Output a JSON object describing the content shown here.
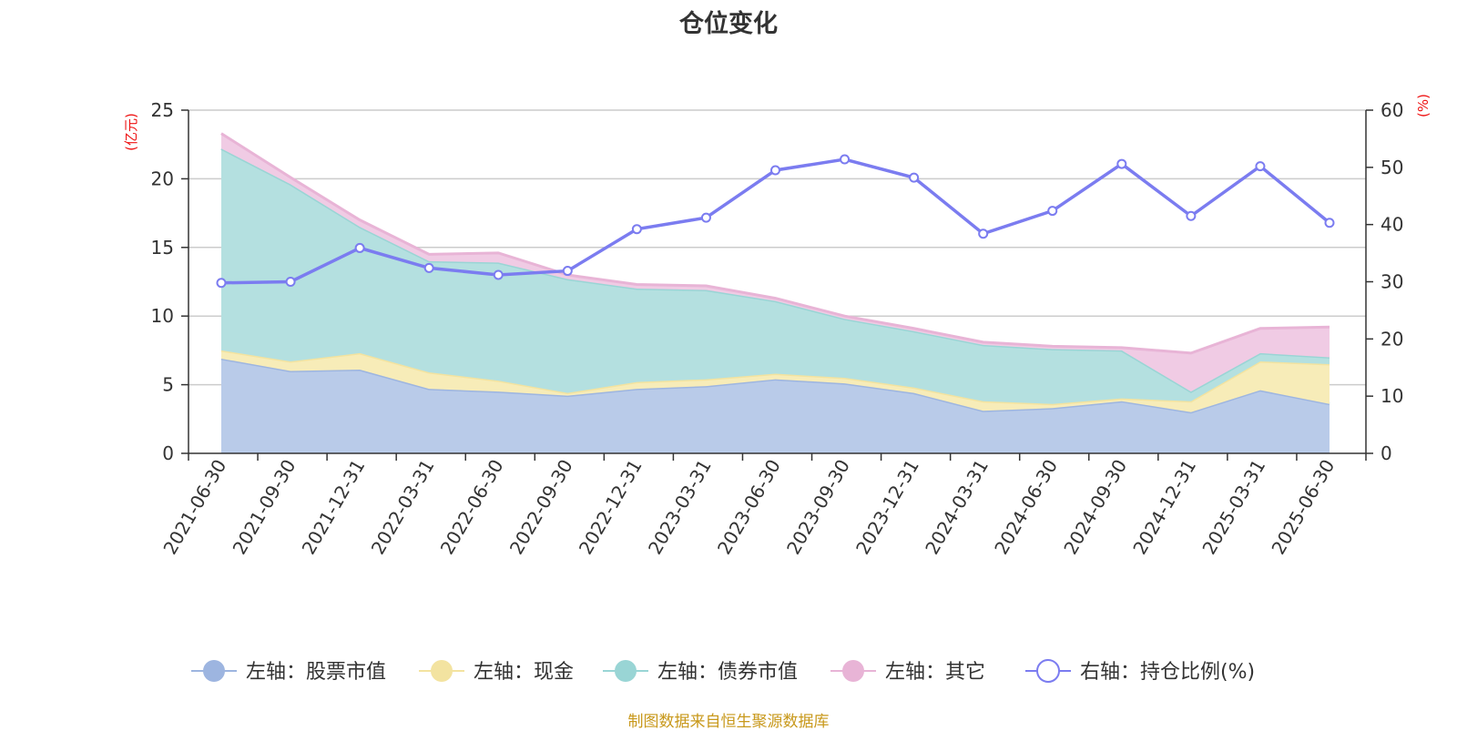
{
  "title": "仓位变化",
  "source_note": "制图数据来自恒生聚源数据库",
  "chart_data": {
    "type": "area",
    "categories": [
      "2021-06-30",
      "2021-09-30",
      "2021-12-31",
      "2022-03-31",
      "2022-06-30",
      "2022-09-30",
      "2022-12-31",
      "2023-03-31",
      "2023-06-30",
      "2023-09-30",
      "2023-12-31",
      "2024-03-31",
      "2024-06-30",
      "2024-09-30",
      "2024-12-31",
      "2025-03-31",
      "2025-06-30"
    ],
    "left_axis": {
      "unit": "(亿元)",
      "ylim": [
        0,
        25
      ],
      "ticks": [
        0,
        5,
        10,
        15,
        20,
        25
      ]
    },
    "right_axis": {
      "unit": "(%)",
      "ylim": [
        0,
        60
      ],
      "ticks": [
        0,
        10,
        20,
        30,
        40,
        50,
        60
      ]
    },
    "stacked": true,
    "grid": true,
    "legend_position": "bottom",
    "series": [
      {
        "name": "左轴：股票市值",
        "axis": "left",
        "color": "#9db5e0",
        "fill": "#b9cbe9",
        "values": [
          6.9,
          6.0,
          6.1,
          4.7,
          4.5,
          4.2,
          4.7,
          4.9,
          5.4,
          5.1,
          4.4,
          3.1,
          3.3,
          3.8,
          3.0,
          4.6,
          3.6
        ]
      },
      {
        "name": "左轴：现金",
        "axis": "left",
        "color": "#f3e3a0",
        "fill": "#f7ecb8",
        "values": [
          0.6,
          0.7,
          1.2,
          1.2,
          0.8,
          0.2,
          0.5,
          0.5,
          0.4,
          0.4,
          0.4,
          0.7,
          0.3,
          0.2,
          0.8,
          2.1,
          2.9
        ]
      },
      {
        "name": "左轴：债券市值",
        "axis": "left",
        "color": "#99d5d5",
        "fill": "#b4e0e0",
        "values": [
          14.7,
          12.9,
          9.2,
          8.1,
          8.6,
          8.3,
          6.8,
          6.5,
          5.3,
          4.3,
          4.1,
          4.1,
          4.0,
          3.5,
          0.7,
          0.6,
          0.5
        ]
      },
      {
        "name": "左轴：其它",
        "axis": "left",
        "color": "#e8b4d6",
        "fill": "#f0cbe4",
        "values": [
          1.1,
          0.5,
          0.5,
          0.5,
          0.7,
          0.3,
          0.3,
          0.3,
          0.2,
          0.2,
          0.2,
          0.2,
          0.2,
          0.2,
          2.8,
          1.8,
          2.2
        ]
      },
      {
        "name": "右轴：持仓比例(%)",
        "axis": "right",
        "type": "line",
        "color": "#7b7cf0",
        "values": [
          29.8,
          30.0,
          35.9,
          32.4,
          31.2,
          31.9,
          39.2,
          41.2,
          49.5,
          51.4,
          48.2,
          38.4,
          42.4,
          50.6,
          41.5,
          50.2,
          40.3
        ]
      }
    ]
  }
}
